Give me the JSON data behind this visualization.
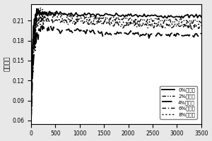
{
  "ylabel": "摩擦系数",
  "xlim": [
    0,
    3500
  ],
  "ylim": [
    0.055,
    0.235
  ],
  "yticks": [
    0.06,
    0.09,
    0.12,
    0.15,
    0.18,
    0.21
  ],
  "xticks": [
    0,
    500,
    1000,
    1500,
    2000,
    2500,
    3000,
    3500
  ],
  "legend_labels": [
    "0%竹纤维",
    "2%竹纤维",
    "4%竹纤维",
    "6%竹纤维",
    "8%竹纤维"
  ],
  "steady_values": [
    0.216,
    0.208,
    0.187,
    0.2,
    0.203
  ],
  "peak_values": [
    0.222,
    0.223,
    0.2,
    0.213,
    0.218
  ],
  "peak_x": [
    150,
    200,
    250,
    180,
    300
  ],
  "noise_amps": [
    0.0015,
    0.002,
    0.002,
    0.0025,
    0.003
  ],
  "background_color": "#e8e8e8",
  "figsize": [
    3.0,
    2.0
  ],
  "dpi": 100
}
